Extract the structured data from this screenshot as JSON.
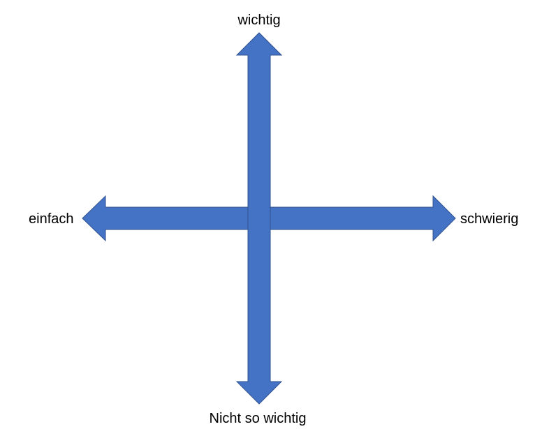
{
  "diagram": {
    "labels": {
      "top": "wichtig",
      "bottom": "Nicht so wichtig",
      "left": "einfach",
      "right": "schwierig"
    },
    "colors": {
      "arrow_fill": "#4472C4",
      "arrow_stroke": "#2F528F",
      "text": "#000000"
    }
  }
}
